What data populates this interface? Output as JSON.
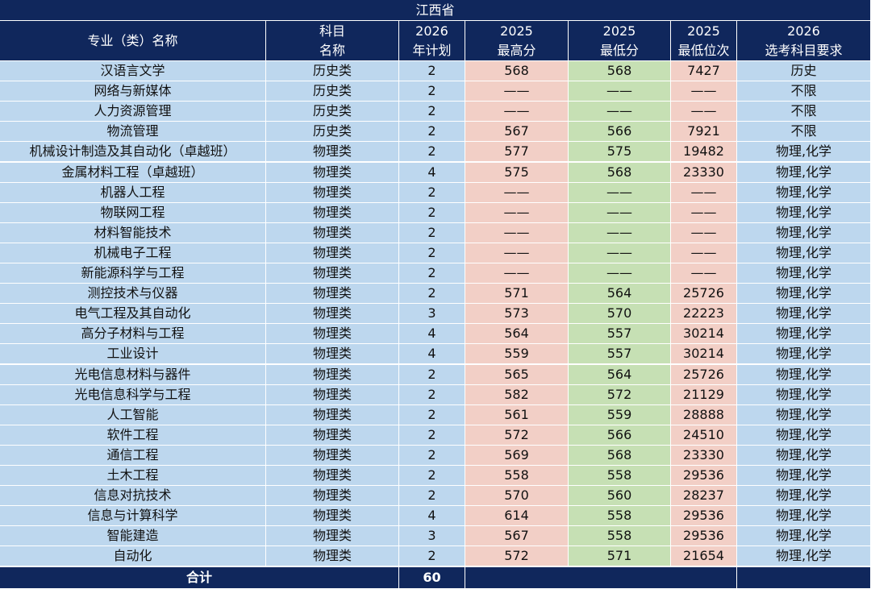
{
  "table": {
    "title": "江西省",
    "header": [
      [
        "专业（类）名称"
      ],
      [
        "科目",
        "名称"
      ],
      [
        "2026",
        "年计划"
      ],
      [
        "2025",
        "最高分"
      ],
      [
        "2025",
        "最低分"
      ],
      [
        "2025",
        "最低位次"
      ],
      [
        "2026",
        "选考科目要求"
      ]
    ],
    "rows": [
      [
        "汉语言文学",
        "历史类",
        2,
        568,
        568,
        7427,
        "历史"
      ],
      [
        "网络与新媒体",
        "历史类",
        2,
        "——",
        "——",
        "——",
        "不限"
      ],
      [
        "人力资源管理",
        "历史类",
        2,
        "——",
        "——",
        "——",
        "不限"
      ],
      [
        "物流管理",
        "历史类",
        2,
        567,
        566,
        7921,
        "不限"
      ],
      [
        "机械设计制造及其自动化（卓越班）",
        "物理类",
        2,
        577,
        575,
        19482,
        "物理,化学"
      ],
      [
        "金属材料工程（卓越班）",
        "物理类",
        4,
        575,
        568,
        23330,
        "物理,化学"
      ],
      [
        "机器人工程",
        "物理类",
        2,
        "——",
        "——",
        "——",
        "物理,化学"
      ],
      [
        "物联网工程",
        "物理类",
        2,
        "——",
        "——",
        "——",
        "物理,化学"
      ],
      [
        "材料智能技术",
        "物理类",
        2,
        "——",
        "——",
        "——",
        "物理,化学"
      ],
      [
        "机械电子工程",
        "物理类",
        2,
        "——",
        "——",
        "——",
        "物理,化学"
      ],
      [
        "新能源科学与工程",
        "物理类",
        2,
        "——",
        "——",
        "——",
        "物理,化学"
      ],
      [
        "测控技术与仪器",
        "物理类",
        2,
        571,
        564,
        25726,
        "物理,化学"
      ],
      [
        "电气工程及其自动化",
        "物理类",
        3,
        573,
        570,
        22223,
        "物理,化学"
      ],
      [
        "高分子材料与工程",
        "物理类",
        4,
        564,
        557,
        30214,
        "物理,化学"
      ],
      [
        "工业设计",
        "物理类",
        4,
        559,
        557,
        30214,
        "物理,化学"
      ],
      [
        "光电信息材料与器件",
        "物理类",
        2,
        565,
        564,
        25726,
        "物理,化学"
      ],
      [
        "光电信息科学与工程",
        "物理类",
        2,
        582,
        572,
        21129,
        "物理,化学"
      ],
      [
        "人工智能",
        "物理类",
        2,
        561,
        559,
        28888,
        "物理,化学"
      ],
      [
        "软件工程",
        "物理类",
        2,
        572,
        566,
        24510,
        "物理,化学"
      ],
      [
        "通信工程",
        "物理类",
        2,
        569,
        568,
        23330,
        "物理,化学"
      ],
      [
        "土木工程",
        "物理类",
        2,
        558,
        558,
        29536,
        "物理,化学"
      ],
      [
        "信息对抗技术",
        "物理类",
        2,
        570,
        560,
        28237,
        "物理,化学"
      ],
      [
        "信息与计算科学",
        "物理类",
        4,
        614,
        558,
        29536,
        "物理,化学"
      ],
      [
        "智能建造",
        "物理类",
        3,
        567,
        558,
        29536,
        "物理,化学"
      ],
      [
        "自动化",
        "物理类",
        2,
        572,
        571,
        21654,
        "物理,化学"
      ]
    ],
    "footer": {
      "label": "合计",
      "total": 60
    }
  }
}
